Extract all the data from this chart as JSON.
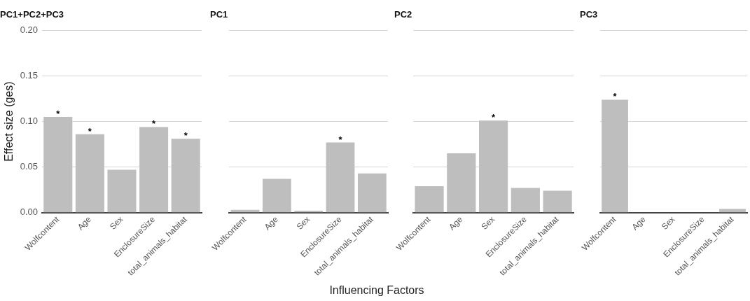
{
  "chart_data": [
    {
      "type": "bar",
      "title": "PC1+PC2+PC3",
      "ylabel": "Effect size (ges)",
      "categories": [
        "Wolfcontent",
        "Age",
        "Sex",
        "EnclosureSize",
        "total_animals_habitat"
      ],
      "values": [
        0.105,
        0.086,
        0.047,
        0.094,
        0.081
      ],
      "color": "#bebebe",
      "ylim": [
        0,
        0.2
      ],
      "yticks": [
        {
          "value": 0,
          "label": "0.00"
        },
        {
          "value": 0.05,
          "label": "0.05"
        },
        {
          "value": 0.1,
          "label": "0.10"
        },
        {
          "value": 0.15,
          "label": "0.15"
        },
        {
          "value": 0.2,
          "label": "0.20"
        }
      ],
      "grid": "y",
      "annotations": [
        {
          "text": "*",
          "x": "Wolfcontent",
          "y": 0.105
        },
        {
          "text": "*",
          "x": "Age",
          "y": 0.086
        },
        {
          "text": "*",
          "x": "EnclosureSize",
          "y": 0.094
        },
        {
          "text": "*",
          "x": "total_animals_habitat",
          "y": 0.081
        }
      ]
    },
    {
      "type": "bar",
      "title": "PC1",
      "xlabel": "Influencing Factors",
      "categories": [
        "Wolfcontent",
        "Age",
        "Sex",
        "EnclosureSize",
        "total_animals_habitat"
      ],
      "values": [
        0.003,
        0.037,
        0.002,
        0.077,
        0.043
      ],
      "color": "#bebebe",
      "ylim": [
        0,
        0.2
      ],
      "yticks": [
        0,
        0.05,
        0.1,
        0.15,
        0.2
      ],
      "grid": "y",
      "tick_labels": "x",
      "annotations": [
        {
          "text": "*",
          "x": "EnclosureSize",
          "y": 0.077
        }
      ]
    },
    {
      "type": "bar",
      "title": "PC2",
      "categories": [
        "Wolfcontent",
        "Age",
        "Sex",
        "EnclosureSize",
        "total_animals_habitat"
      ],
      "values": [
        0.029,
        0.065,
        0.101,
        0.027,
        0.024
      ],
      "color": "#bebebe",
      "ylim": [
        0,
        0.2
      ],
      "yticks": [
        0,
        0.05,
        0.1,
        0.15,
        0.2
      ],
      "grid": "y",
      "tick_labels": "x",
      "annotations": [
        {
          "text": "*",
          "x": "Sex",
          "y": 0.101
        }
      ]
    },
    {
      "type": "bar",
      "title": "PC3",
      "categories": [
        "Wolfcontent",
        "Age",
        "Sex",
        "EnclosureSize",
        "total_animals_habitat"
      ],
      "values": [
        0.124,
        0,
        0,
        0,
        0.004
      ],
      "color": "#bebebe",
      "ylim": [
        0,
        0.2
      ],
      "yticks": [
        0,
        0.05,
        0.1,
        0.15,
        0.2
      ],
      "grid": "y",
      "tick_labels": "x",
      "annotations": [
        {
          "text": "*",
          "x": "Wolfcontent",
          "y": 0.124
        }
      ]
    }
  ]
}
